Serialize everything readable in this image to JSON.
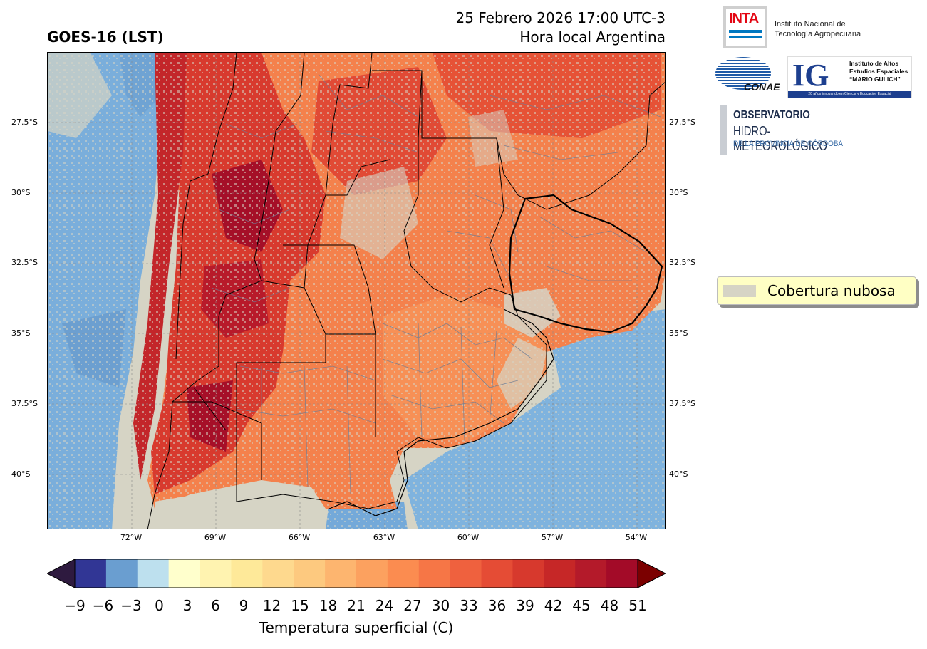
{
  "header": {
    "left_title": "GOES-16 (LST)",
    "date_line": "25 Febrero 2026 17:00 UTC-3",
    "local_line": "Hora local Argentina"
  },
  "map": {
    "lat_ticks": [
      "27.5°S",
      "30°S",
      "32.5°S",
      "35°S",
      "37.5°S",
      "40°S"
    ],
    "lon_ticks": [
      "72°W",
      "69°W",
      "66°W",
      "63°W",
      "60°W",
      "57°W",
      "54°W"
    ],
    "cloud_color": "#d6d4c5"
  },
  "legend": {
    "label": "Cobertura nubosa"
  },
  "colorbar": {
    "title": "Temperatura superficial (C)",
    "tick_labels": [
      "−9",
      "−6",
      "−3",
      "0",
      "3",
      "6",
      "9",
      "12",
      "15",
      "18",
      "21",
      "24",
      "27",
      "30",
      "33",
      "36",
      "39",
      "42",
      "45",
      "48",
      "51"
    ],
    "colors": [
      "#313695",
      "#6a9ed0",
      "#bde0ee",
      "#ffffcc",
      "#fff3b0",
      "#fee999",
      "#fed98e",
      "#fdc97f",
      "#fdb56f",
      "#fca15f",
      "#fb8c50",
      "#f67646",
      "#ef613e",
      "#e54c35",
      "#d7392d",
      "#c62727",
      "#b41a2a",
      "#a30b28"
    ],
    "under_color": "#2e1a3f",
    "over_color": "#7b0000"
  },
  "logos": {
    "inta_word": "INTA",
    "inta_text": [
      "Instituto Nacional de",
      "Tecnología Agropecuaria"
    ],
    "conae_word": "CONAE",
    "ig_letters": "IG",
    "ig_text": [
      "Instituto de Altos",
      "Estudios Espaciales",
      "“MARIO GULICH”"
    ],
    "ig_strip": "20 años innovando en Ciencia y Educación Espacial",
    "obs_line1": "OBSERVATORIO",
    "obs_line2": "HIDRO-METEOROLÓGICO",
    "obs_line3": "DE LA PROVINCIA DE CÓRDOBA"
  }
}
